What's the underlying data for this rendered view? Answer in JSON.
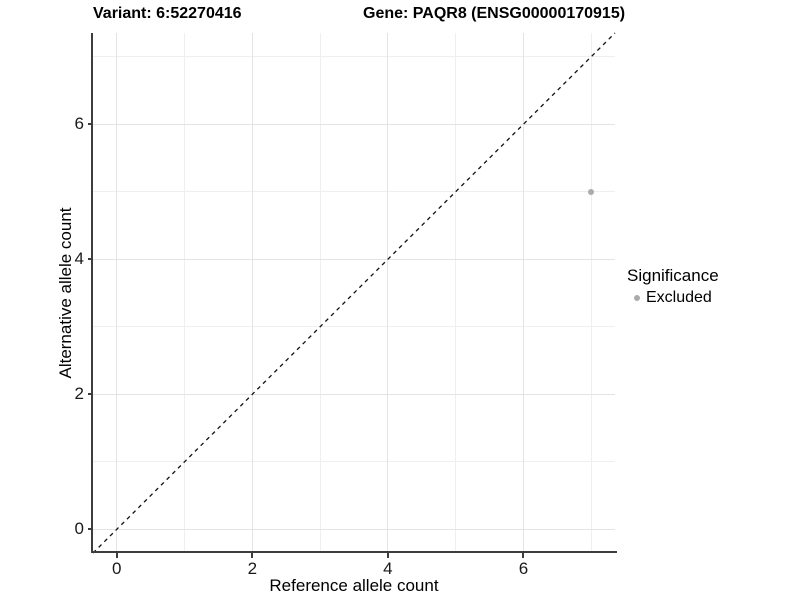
{
  "header": {
    "title_left": "Variant: 6:52270416",
    "title_right": "Gene: PAQR8 (ENSG00000170915)"
  },
  "chart_data": {
    "type": "scatter",
    "title": "Variant: 6:52270416   Gene: PAQR8 (ENSG00000170915)",
    "xlabel": "Reference allele count",
    "ylabel": "Alternative allele count",
    "xlim": [
      -0.35,
      7.35
    ],
    "ylim": [
      -0.35,
      7.35
    ],
    "x_major_ticks": [
      0,
      2,
      4,
      6
    ],
    "x_minor_ticks": [
      1,
      3,
      5,
      7
    ],
    "y_major_ticks": [
      0,
      2,
      4,
      6
    ],
    "y_minor_ticks": [
      1,
      3,
      5,
      7
    ],
    "grid": "major+minor",
    "reference_line": {
      "type": "abline",
      "slope": 1,
      "intercept": 0,
      "style": "dashed",
      "color": "#111111"
    },
    "series": [
      {
        "name": "Excluded",
        "color": "#ababab",
        "points": [
          {
            "x": 7,
            "y": 5
          }
        ]
      }
    ],
    "legend": {
      "title": "Significance",
      "position": "right",
      "entries": [
        {
          "label": "Excluded",
          "color": "#ababab",
          "marker": "circle"
        }
      ]
    }
  },
  "colors": {
    "background": "#ffffff",
    "grid_major": "#e4e4e4",
    "grid_minor": "#efefef",
    "axis": "#3d3d3d",
    "point": "#ababab",
    "text": "#000000"
  }
}
